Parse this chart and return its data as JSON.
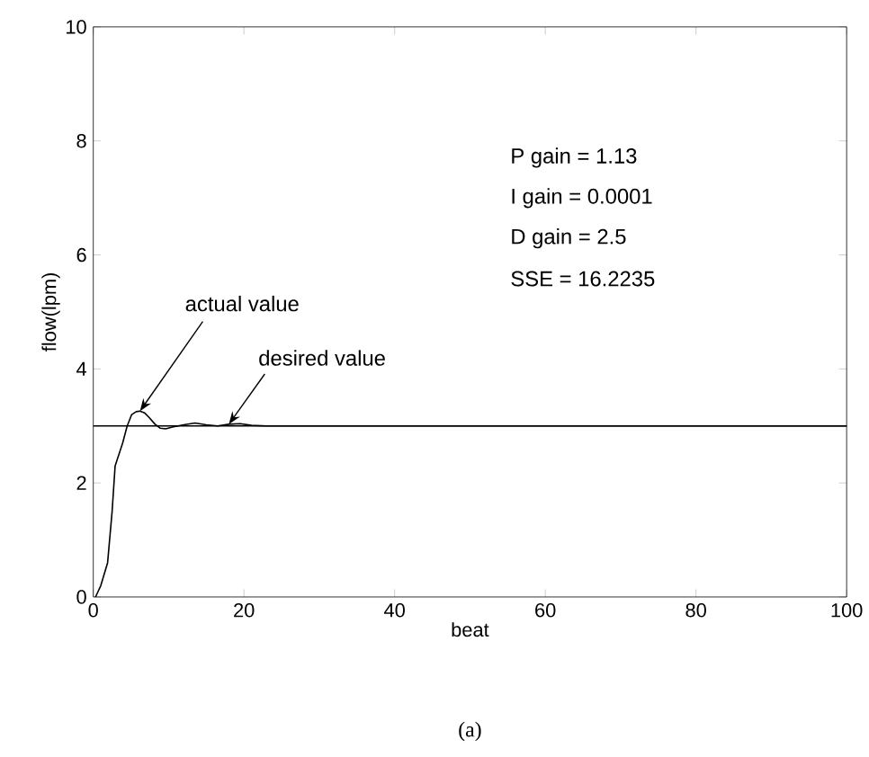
{
  "chart_data": {
    "type": "line",
    "xlabel": "beat",
    "ylabel": "flow(lpm)",
    "xlim": [
      0,
      100
    ],
    "ylim": [
      0,
      10
    ],
    "xticks": [
      0,
      20,
      40,
      60,
      80,
      100
    ],
    "yticks": [
      0,
      2,
      4,
      6,
      8,
      10
    ],
    "series": [
      {
        "color": "#000000",
        "x": [
          0.3,
          1,
          1.9,
          2.5,
          2.9,
          3.4,
          3.9,
          4.5,
          5.1,
          5.7,
          6.2,
          6.8,
          7.4,
          8.2,
          8.9,
          9.6,
          10.5,
          12,
          13.5,
          15,
          16.5,
          18,
          19.5,
          21,
          23,
          26,
          30,
          40,
          50,
          60,
          70,
          80,
          90,
          100
        ],
        "values": [
          0,
          0.2,
          0.6,
          1.5,
          2.3,
          2.5,
          2.7,
          3.0,
          3.2,
          3.25,
          3.26,
          3.23,
          3.15,
          3.03,
          2.96,
          2.95,
          2.98,
          3.02,
          3.05,
          3.02,
          3.0,
          3.03,
          3.04,
          3.01,
          3.0,
          3.0,
          3.0,
          3.0,
          3.0,
          3.0,
          3.0,
          3.0,
          3.0,
          3.0
        ]
      },
      {
        "color": "#000000",
        "x": [
          0,
          100
        ],
        "values": [
          3,
          3
        ]
      }
    ],
    "annotations": [
      {
        "text": "actual value",
        "x": 6.2,
        "y": 3.26
      },
      {
        "text": "desired value",
        "x": 18,
        "y": 3.03
      },
      "P gain = 1.13",
      "I gain = 0.0001",
      "D gain = 2.5",
      "SSE = 16.2235",
      "(a)"
    ],
    "grid": false
  }
}
